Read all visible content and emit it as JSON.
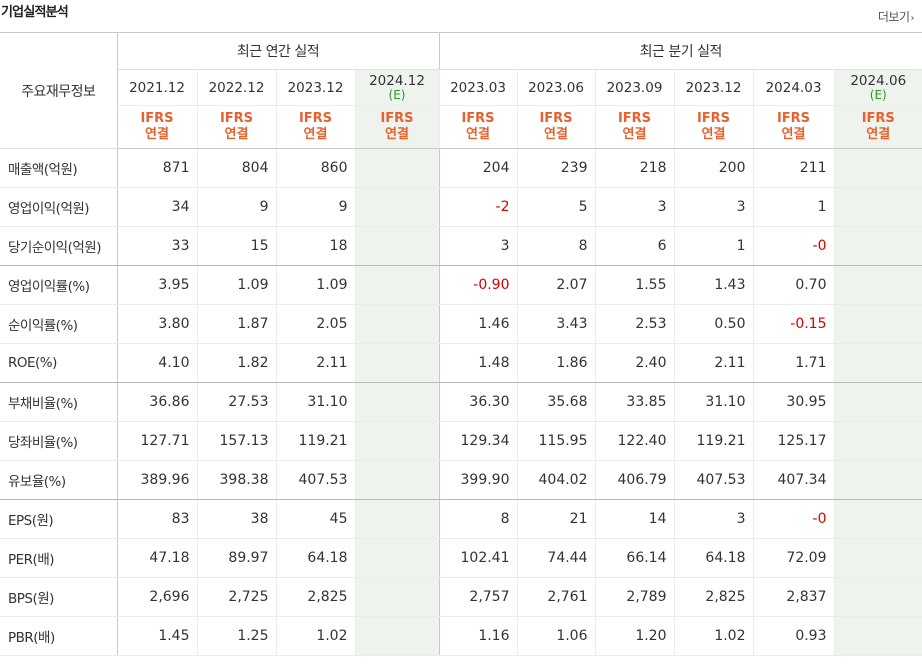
{
  "title": "기업실적분석",
  "more_label": "더보기",
  "header": {
    "row_label": "주요재무정보",
    "annual_group": "최근 연간 실적",
    "quarter_group": "최근 분기 실적",
    "annual_dates": [
      "2021.12",
      "2022.12",
      "2023.12"
    ],
    "annual_est": {
      "date": "2024.12",
      "mark": "(E)"
    },
    "quarter_dates": [
      "2023.03",
      "2023.06",
      "2023.09",
      "2023.12",
      "2024.03"
    ],
    "quarter_est": {
      "date": "2024.06",
      "mark": "(E)"
    },
    "standard_top": "IFRS",
    "standard_bottom": "연결"
  },
  "rows": [
    {
      "label": "매출액(억원)",
      "annual": [
        "871",
        "804",
        "860"
      ],
      "quarter": [
        "204",
        "239",
        "218",
        "200",
        "211"
      ]
    },
    {
      "label": "영업이익(억원)",
      "annual": [
        "34",
        "9",
        "9"
      ],
      "quarter": [
        "-2",
        "5",
        "3",
        "3",
        "1"
      ]
    },
    {
      "label": "당기순이익(억원)",
      "annual": [
        "33",
        "15",
        "18"
      ],
      "quarter": [
        "3",
        "8",
        "6",
        "1",
        "-0"
      ]
    },
    {
      "label": "영업이익률(%)",
      "annual": [
        "3.95",
        "1.09",
        "1.09"
      ],
      "quarter": [
        "-0.90",
        "2.07",
        "1.55",
        "1.43",
        "0.70"
      ]
    },
    {
      "label": "순이익률(%)",
      "annual": [
        "3.80",
        "1.87",
        "2.05"
      ],
      "quarter": [
        "1.46",
        "3.43",
        "2.53",
        "0.50",
        "-0.15"
      ]
    },
    {
      "label": "ROE(%)",
      "annual": [
        "4.10",
        "1.82",
        "2.11"
      ],
      "quarter": [
        "1.48",
        "1.86",
        "2.40",
        "2.11",
        "1.71"
      ]
    },
    {
      "label": "부채비율(%)",
      "annual": [
        "36.86",
        "27.53",
        "31.10"
      ],
      "quarter": [
        "36.30",
        "35.68",
        "33.85",
        "31.10",
        "30.95"
      ]
    },
    {
      "label": "당좌비율(%)",
      "annual": [
        "127.71",
        "157.13",
        "119.21"
      ],
      "quarter": [
        "129.34",
        "115.95",
        "122.40",
        "119.21",
        "125.17"
      ]
    },
    {
      "label": "유보율(%)",
      "annual": [
        "389.96",
        "398.38",
        "407.53"
      ],
      "quarter": [
        "399.90",
        "404.02",
        "406.79",
        "407.53",
        "407.34"
      ]
    },
    {
      "label": "EPS(원)",
      "annual": [
        "83",
        "38",
        "45"
      ],
      "quarter": [
        "8",
        "21",
        "14",
        "3",
        "-0"
      ]
    },
    {
      "label": "PER(배)",
      "annual": [
        "47.18",
        "89.97",
        "64.18"
      ],
      "quarter": [
        "102.41",
        "74.44",
        "66.14",
        "64.18",
        "72.09"
      ]
    },
    {
      "label": "BPS(원)",
      "annual": [
        "2,696",
        "2,725",
        "2,825"
      ],
      "quarter": [
        "2,757",
        "2,761",
        "2,789",
        "2,825",
        "2,837"
      ]
    },
    {
      "label": "PBR(배)",
      "annual": [
        "1.45",
        "1.25",
        "1.02"
      ],
      "quarter": [
        "1.16",
        "1.06",
        "1.20",
        "1.02",
        "0.93"
      ]
    }
  ],
  "colors": {
    "standard": "#e8602c",
    "estimate_bg": "#eef3ee",
    "estimate_mark": "#2a9a2a",
    "negative": "#d40000"
  }
}
